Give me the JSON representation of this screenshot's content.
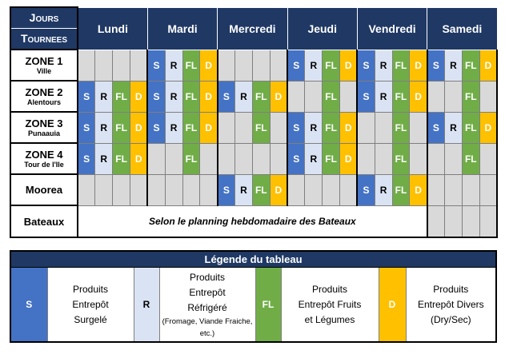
{
  "header": {
    "corner_top": "Jours",
    "corner_bottom": "Tournees",
    "days": [
      "Lundi",
      "Mardi",
      "Mercredi",
      "Jeudi",
      "Vendredi",
      "Samedi"
    ]
  },
  "rows": [
    {
      "name": "ZONE 1",
      "sub": "Ville",
      "cells": [
        "",
        "",
        "",
        "",
        "S",
        "R",
        "FL",
        "D",
        "",
        "",
        "",
        "",
        "S",
        "R",
        "FL",
        "D",
        "S",
        "R",
        "FL",
        "D",
        "S",
        "R",
        "FL",
        "D"
      ]
    },
    {
      "name": "ZONE 2",
      "sub": "Alentours",
      "cells": [
        "S",
        "R",
        "FL",
        "D",
        "S",
        "R",
        "FL",
        "D",
        "S",
        "R",
        "FL",
        "D",
        "",
        "",
        "FL",
        "",
        "S",
        "R",
        "FL",
        "D",
        "",
        "",
        "FL",
        ""
      ]
    },
    {
      "name": "ZONE 3",
      "sub": "Punaauia",
      "cells": [
        "S",
        "R",
        "FL",
        "D",
        "S",
        "R",
        "FL",
        "D",
        "",
        "",
        "FL",
        "",
        "S",
        "R",
        "FL",
        "D",
        "",
        "",
        "FL",
        "",
        "S",
        "R",
        "FL",
        "D"
      ]
    },
    {
      "name": "ZONE 4",
      "sub": "Tour de l'Ile",
      "cells": [
        "S",
        "R",
        "FL",
        "D",
        "",
        "",
        "FL",
        "",
        "",
        "",
        "",
        "",
        "S",
        "R",
        "FL",
        "D",
        "",
        "",
        "FL",
        "",
        "",
        "",
        "FL",
        ""
      ]
    },
    {
      "name": "Moorea",
      "sub": "",
      "cells": [
        "",
        "",
        "",
        "",
        "",
        "",
        "",
        "",
        "S",
        "R",
        "FL",
        "D",
        "",
        "",
        "",
        "",
        "S",
        "R",
        "FL",
        "D",
        "",
        "",
        "",
        ""
      ]
    }
  ],
  "bateaux": {
    "name": "Bateaux",
    "text": "Selon le planning hebdomadaire des Bateaux"
  },
  "legend": {
    "title": "Légende du tableau",
    "items": [
      {
        "code": "S",
        "lines": [
          "Produits",
          "Entrepôt",
          "Surgelé"
        ],
        "note": ""
      },
      {
        "code": "R",
        "lines": [
          "Produits",
          "Entrepôt",
          "Réfrigéré"
        ],
        "note": "(Fromage, Viande Fraiche, etc.)"
      },
      {
        "code": "FL",
        "lines": [
          "Produits",
          "Entrepôt Fruits",
          "et Légumes"
        ],
        "note": ""
      },
      {
        "code": "D",
        "lines": [
          "Produits",
          "Entrepôt Divers",
          "(Dry/Sec)"
        ],
        "note": ""
      }
    ]
  },
  "colors": {
    "S": "#4472c4",
    "R": "#dae3f3",
    "FL": "#70ad47",
    "D": "#ffc000",
    "empty": "#d9d9d9",
    "header": "#1f3864"
  }
}
